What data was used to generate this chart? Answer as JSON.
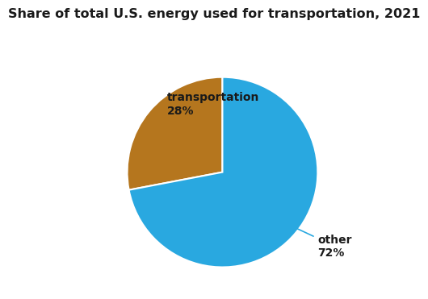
{
  "title": "Share of total U.S. energy used for transportation, 2021",
  "slices": [
    28,
    72
  ],
  "labels": [
    "transportation",
    "other"
  ],
  "percentages": [
    "28%",
    "72%"
  ],
  "colors": [
    "#b5761e",
    "#29a8e0"
  ],
  "startangle": 90,
  "background_color": "#ffffff",
  "title_fontsize": 11.5,
  "label_fontsize": 10,
  "wedge_edge_color": "#ffffff",
  "transport_arrow_color": "#b5761e",
  "other_arrow_color": "#29a8e0",
  "text_color": "#1a1a1a"
}
